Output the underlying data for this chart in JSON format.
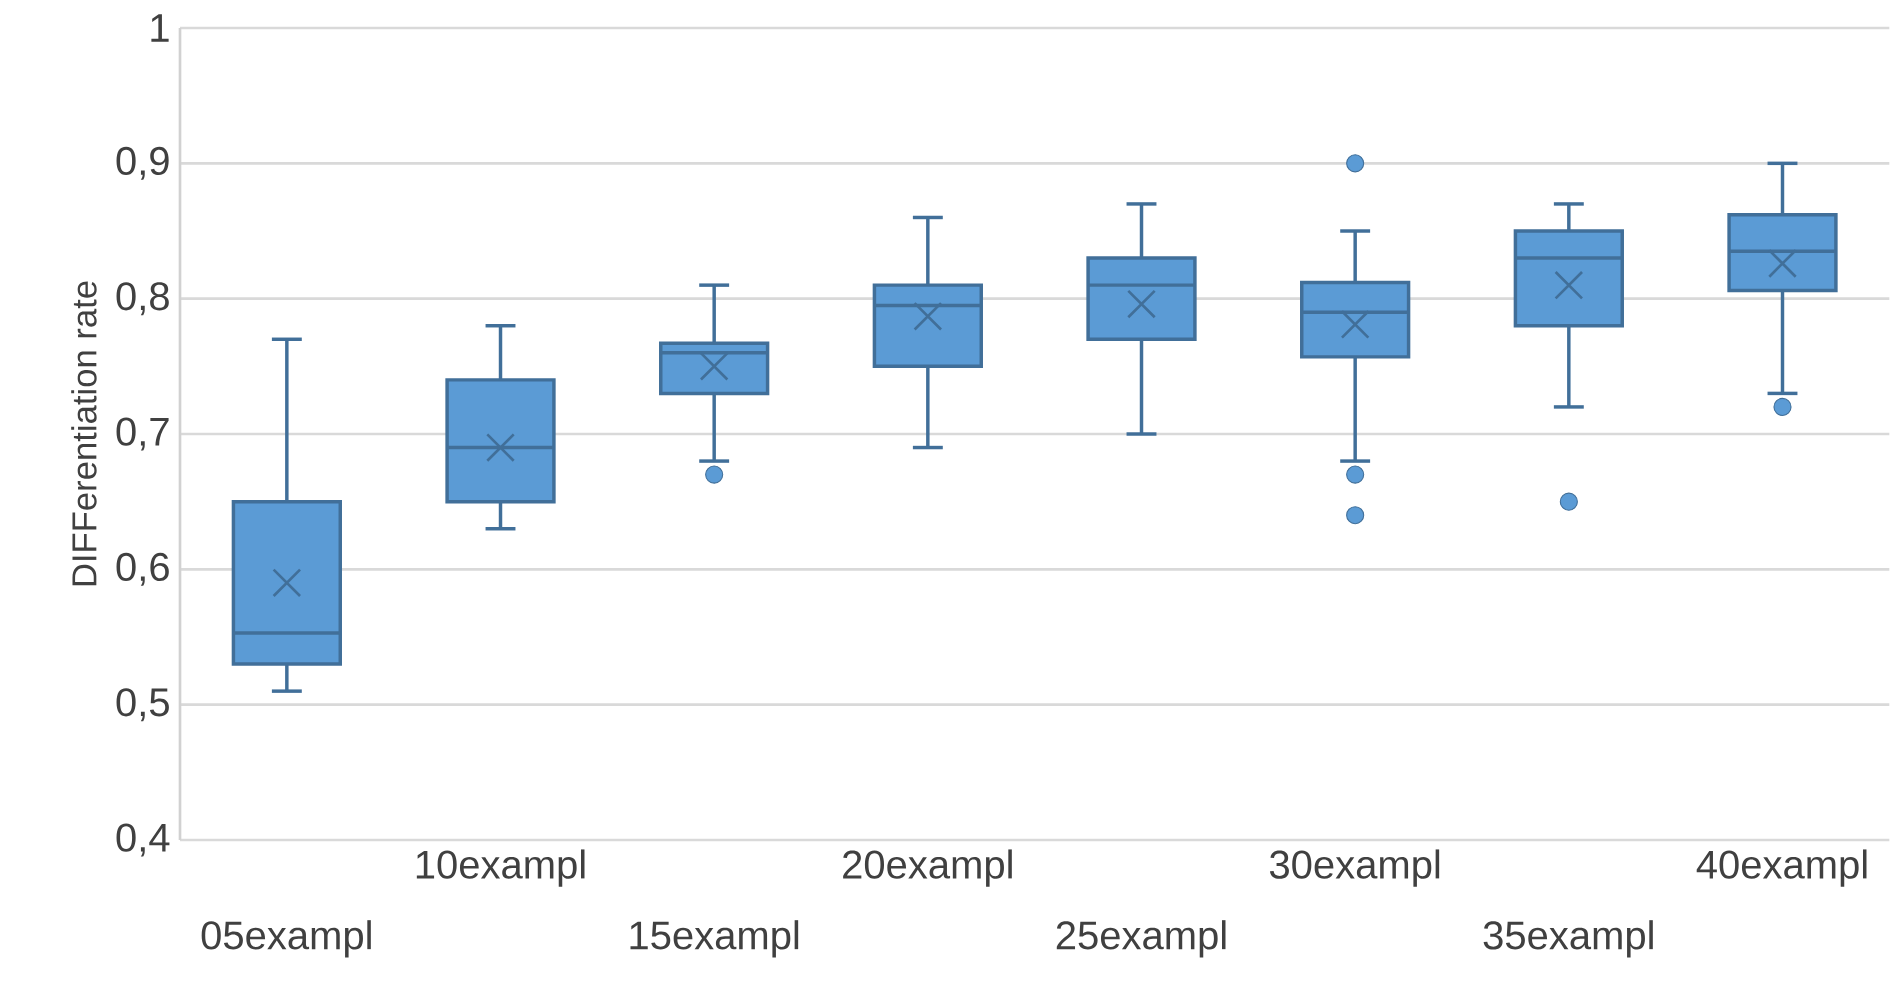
{
  "chart_data": {
    "type": "box",
    "ylabel": "DIFFerentiation rate",
    "categories": [
      "05exampl",
      "10exampl",
      "15exampl",
      "20exampl",
      "25exampl",
      "30exampl",
      "35exampl",
      "40exampl"
    ],
    "boxes": [
      {
        "low": 0.51,
        "q1": 0.53,
        "median": 0.553,
        "q3": 0.65,
        "high": 0.77,
        "mean": 0.59
      },
      {
        "low": 0.63,
        "q1": 0.65,
        "median": 0.69,
        "q3": 0.74,
        "high": 0.78,
        "mean": 0.69
      },
      {
        "low": 0.68,
        "q1": 0.73,
        "median": 0.76,
        "q3": 0.767,
        "high": 0.81,
        "mean": 0.75,
        "outliers": [
          0.67
        ]
      },
      {
        "low": 0.69,
        "q1": 0.75,
        "median": 0.795,
        "q3": 0.81,
        "high": 0.86,
        "mean": 0.787
      },
      {
        "low": 0.7,
        "q1": 0.77,
        "median": 0.81,
        "q3": 0.83,
        "high": 0.87,
        "mean": 0.796
      },
      {
        "low": 0.68,
        "q1": 0.757,
        "median": 0.79,
        "q3": 0.812,
        "high": 0.85,
        "mean": 0.781,
        "outliers": [
          0.9,
          0.67,
          0.64
        ]
      },
      {
        "low": 0.72,
        "q1": 0.78,
        "median": 0.83,
        "q3": 0.85,
        "high": 0.87,
        "mean": 0.81,
        "outliers": [
          0.65
        ]
      },
      {
        "low": 0.73,
        "q1": 0.806,
        "median": 0.835,
        "q3": 0.862,
        "high": 0.9,
        "mean": 0.826,
        "outliers": [
          0.72
        ]
      }
    ],
    "color": "#5b9bd5",
    "ylim": [
      0.4,
      1
    ],
    "yticks": [
      {
        "value": 0.4,
        "label": "0,4"
      },
      {
        "value": 0.5,
        "label": "0,5"
      },
      {
        "value": 0.6,
        "label": "0,6"
      },
      {
        "value": 0.7,
        "label": "0,7"
      },
      {
        "value": 0.8,
        "label": "0,8"
      },
      {
        "value": 0.9,
        "label": "0,9"
      },
      1
    ],
    "grid": "y",
    "marker": "cross"
  }
}
